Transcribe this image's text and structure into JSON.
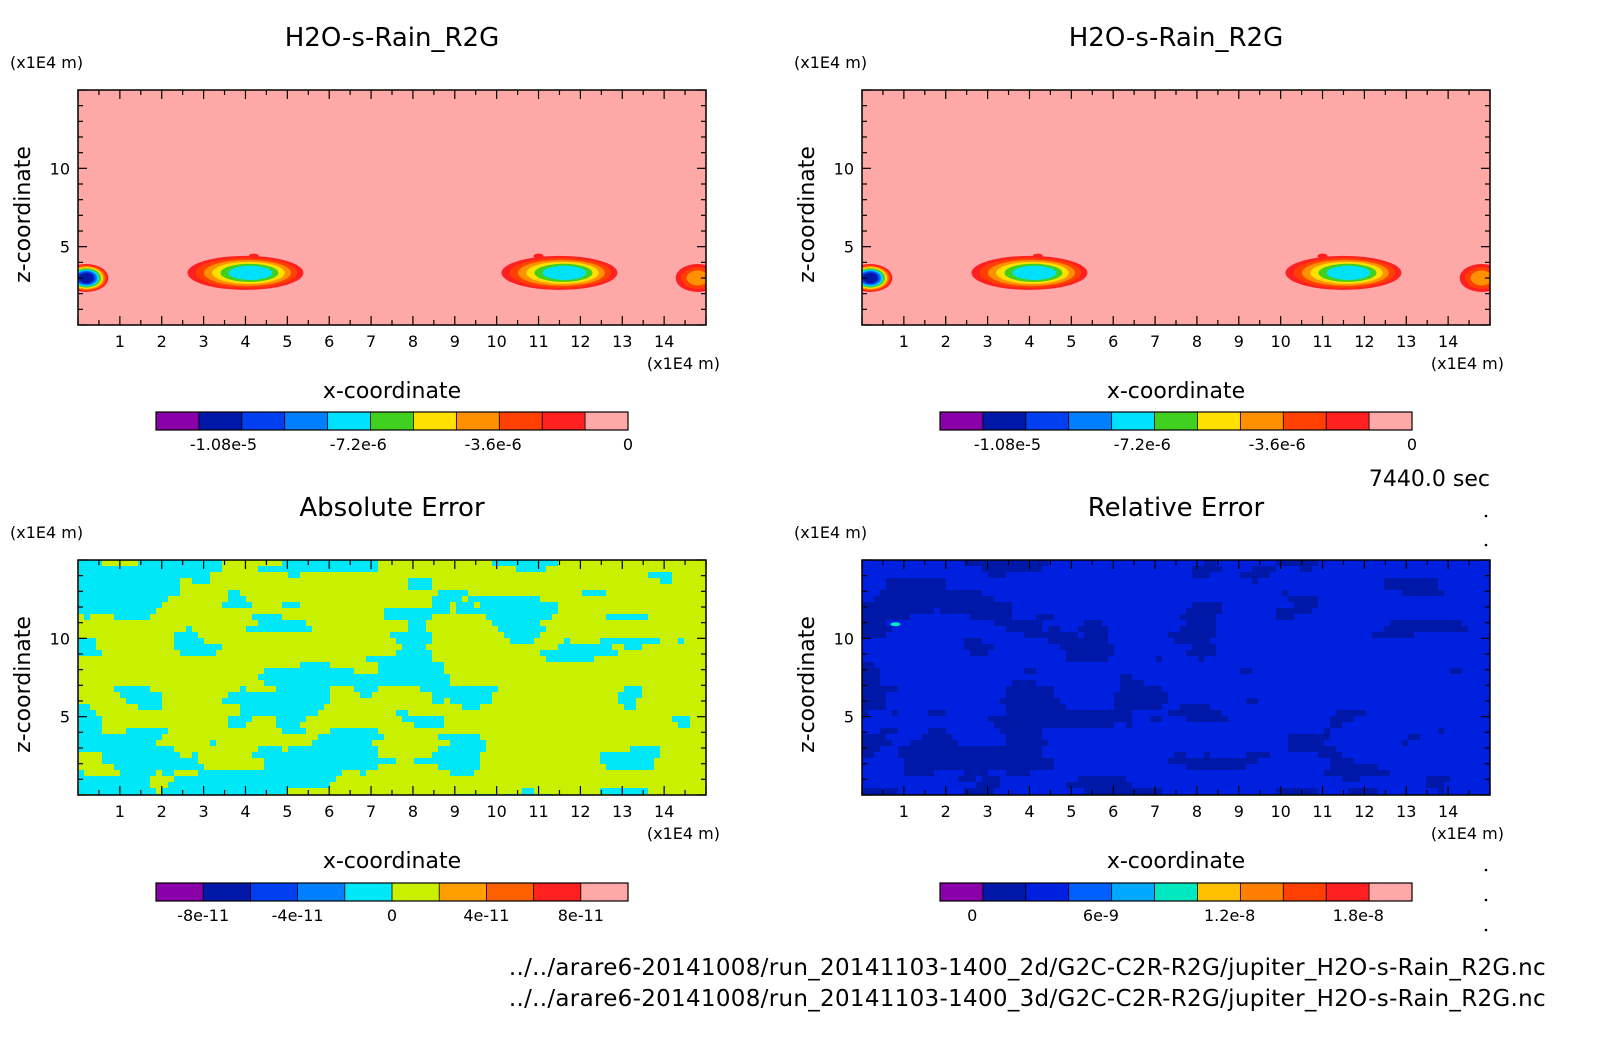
{
  "chart_data": [
    {
      "type": "heatmap",
      "title": "H2O-s-Rain_R2G",
      "xlabel": "x-coordinate",
      "ylabel": "z-coordinate",
      "xunit": "(x1E4 m)",
      "yunit": "(x1E4 m)",
      "xlim": [
        0,
        15
      ],
      "ylim": [
        0,
        15
      ],
      "xticks": [
        "1",
        "2",
        "3",
        "4",
        "5",
        "6",
        "7",
        "8",
        "9",
        "10",
        "11",
        "12",
        "13",
        "14"
      ],
      "yticks": [
        "5",
        "10"
      ],
      "field": "background",
      "features": [
        {
          "x": 0.2,
          "z": 3.0,
          "value": -1.08e-05
        },
        {
          "x": 4.0,
          "z": 3.2,
          "value": -7.2e-06
        },
        {
          "x": 11.5,
          "z": 3.2,
          "value": -7.2e-06
        },
        {
          "x": 14.8,
          "z": 3.0,
          "value": -3.6e-06
        }
      ],
      "colorbar": {
        "colors": [
          "#8a00a8",
          "#0018a8",
          "#0040f0",
          "#0080ff",
          "#00e0ff",
          "#40d020",
          "#ffe000",
          "#ff9000",
          "#ff4000",
          "#ff2020",
          "#ffa8a8"
        ],
        "labels": [
          "-1.08e-5",
          "-7.2e-6",
          "-3.6e-6",
          "0"
        ],
        "min": -1.26e-05,
        "max": 0
      }
    },
    {
      "type": "heatmap",
      "title": "H2O-s-Rain_R2G",
      "xlabel": "x-coordinate",
      "ylabel": "z-coordinate",
      "xunit": "(x1E4 m)",
      "yunit": "(x1E4 m)",
      "xlim": [
        0,
        15
      ],
      "ylim": [
        0,
        15
      ],
      "xticks": [
        "1",
        "2",
        "3",
        "4",
        "5",
        "6",
        "7",
        "8",
        "9",
        "10",
        "11",
        "12",
        "13",
        "14"
      ],
      "yticks": [
        "5",
        "10"
      ],
      "field": "background",
      "features": [
        {
          "x": 0.2,
          "z": 3.0,
          "value": -1.08e-05
        },
        {
          "x": 4.0,
          "z": 3.2,
          "value": -7.2e-06
        },
        {
          "x": 11.5,
          "z": 3.2,
          "value": -7.2e-06
        },
        {
          "x": 14.8,
          "z": 3.0,
          "value": -3.6e-06
        }
      ],
      "colorbar": {
        "colors": [
          "#8a00a8",
          "#0018a8",
          "#0040f0",
          "#0080ff",
          "#00e0ff",
          "#40d020",
          "#ffe000",
          "#ff9000",
          "#ff4000",
          "#ff2020",
          "#ffa8a8"
        ],
        "labels": [
          "-1.08e-5",
          "-7.2e-6",
          "-3.6e-6",
          "0"
        ],
        "min": -1.26e-05,
        "max": 0
      }
    },
    {
      "type": "heatmap",
      "title": "Absolute Error",
      "xlabel": "x-coordinate",
      "ylabel": "z-coordinate",
      "xunit": "(x1E4 m)",
      "yunit": "(x1E4 m)",
      "xlim": [
        0,
        15
      ],
      "ylim": [
        0,
        15
      ],
      "xticks": [
        "1",
        "2",
        "3",
        "4",
        "5",
        "6",
        "7",
        "8",
        "9",
        "10",
        "11",
        "12",
        "13",
        "14"
      ],
      "yticks": [
        "5",
        "10"
      ],
      "field": "noise",
      "base_color": "#c8f000",
      "patch_color": "#00e8f8",
      "colorbar": {
        "colors": [
          "#8a00a8",
          "#0018a8",
          "#0040f0",
          "#0080ff",
          "#00e8f8",
          "#c8f000",
          "#ffa000",
          "#ff6000",
          "#ff2020",
          "#ffa8a8"
        ],
        "labels": [
          "-8e-11",
          "-4e-11",
          "0",
          "4e-11",
          "8e-11"
        ],
        "min": -1e-10,
        "max": 1e-10
      }
    },
    {
      "type": "heatmap",
      "title": "Relative Error",
      "xlabel": "x-coordinate",
      "ylabel": "z-coordinate",
      "xunit": "(x1E4 m)",
      "yunit": "(x1E4 m)",
      "xlim": [
        0,
        15
      ],
      "ylim": [
        0,
        15
      ],
      "xticks": [
        "1",
        "2",
        "3",
        "4",
        "5",
        "6",
        "7",
        "8",
        "9",
        "10",
        "11",
        "12",
        "13",
        "14"
      ],
      "yticks": [
        "5",
        "10"
      ],
      "field": "noise",
      "base_color": "#0020e0",
      "patch_color": "#0018a8",
      "colorbar": {
        "colors": [
          "#8a00a8",
          "#0018a8",
          "#0020e0",
          "#0060ff",
          "#00a8ff",
          "#00e8c0",
          "#ffc000",
          "#ff8000",
          "#ff4000",
          "#ff2020",
          "#ffa8a8"
        ],
        "labels": [
          "0",
          "6e-9",
          "1.2e-8",
          "1.8e-8"
        ],
        "min": -1.5e-09,
        "max": 2.05e-08
      }
    }
  ],
  "time_label": "7440.0 sec",
  "files": [
    "../../arare6-20141008/run_20141103-1400_2d/G2C-C2R-R2G/jupiter_H2O-s-Rain_R2G.nc",
    "../../arare6-20141008/run_20141103-1400_3d/G2C-C2R-R2G/jupiter_H2O-s-Rain_R2G.nc"
  ]
}
